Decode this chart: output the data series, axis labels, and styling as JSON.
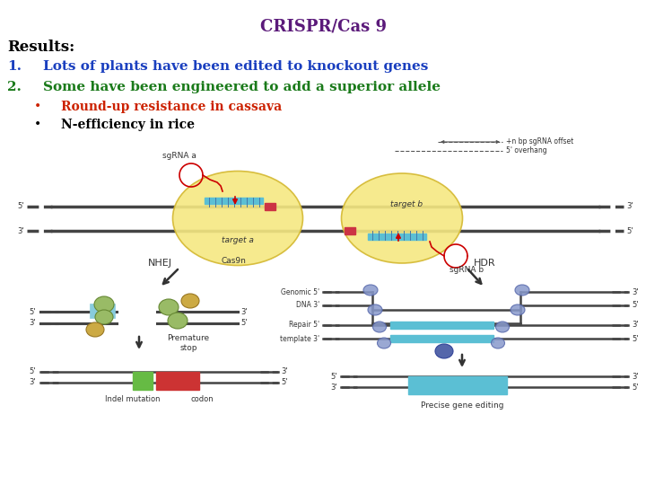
{
  "title": "CRISPR/Cas 9",
  "title_color": "#5B1A7A",
  "title_fontsize": 13,
  "results_label": "Results:",
  "results_color": "#000000",
  "results_fontsize": 12,
  "item1_num": "1.",
  "item1_text": "Lots of plants have been edited to knockout genes",
  "item1_color": "#1A3FBF",
  "item2_num": "2.",
  "item2_text": "Some have been engineered to add a superior allele",
  "item2_color": "#1A7A1A",
  "bullet1_text": "Round-up resistance in cassava",
  "bullet1_color": "#CC2200",
  "bullet2_text": "N-efficiency in rice",
  "bullet2_color": "#000000",
  "item_fontsize": 11,
  "bullet_fontsize": 10,
  "bg_color": "#FFFFFF",
  "dna_color": "#444444",
  "yellow_face": "#F5E882",
  "yellow_edge": "#D4B830",
  "blue_guide": "#5BBFD4",
  "red_arrow": "#CC0000",
  "green_blob": "#8CC870",
  "orange_blob": "#E8A830",
  "blue_blob": "#7799BB",
  "dark_blob": "#5566AA",
  "green_insert": "#66BB44",
  "red_insert": "#CC3333"
}
